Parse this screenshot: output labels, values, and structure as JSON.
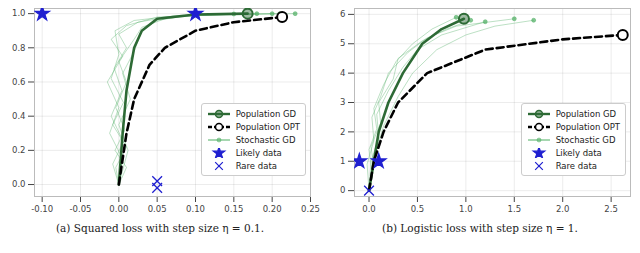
{
  "chart_data": [
    {
      "type": "line",
      "title": "(a) Squared loss with step size η = 0.1.",
      "grid": true,
      "legend": "lower right",
      "xlim": [
        -0.11,
        0.25
      ],
      "ylim": [
        -0.07,
        1.03
      ],
      "xticks": [
        {
          "value": -0.1,
          "label": "-0.10"
        },
        {
          "value": -0.05,
          "label": "-0.05"
        },
        {
          "value": 0,
          "label": "0.00"
        },
        {
          "value": 0.05,
          "label": "0.05"
        },
        {
          "value": 0.1,
          "label": "0.10"
        },
        {
          "value": 0.15,
          "label": "0.15"
        },
        {
          "value": 0.2,
          "label": "0.20"
        },
        {
          "value": 0.25,
          "label": "0.25"
        }
      ],
      "yticks": [
        {
          "value": 0,
          "label": "0.0"
        },
        {
          "value": 0.2,
          "label": "0.2"
        },
        {
          "value": 0.4,
          "label": "0.4"
        },
        {
          "value": 0.6,
          "label": "0.6"
        },
        {
          "value": 0.8,
          "label": "0.8"
        },
        {
          "value": 1,
          "label": "1.0"
        }
      ],
      "series": [
        {
          "name": "Population GD",
          "type": "line",
          "color": "#2d6a35",
          "line_style": "solid",
          "marker": "circle",
          "x": [
            0,
            0.005,
            0.01,
            0.02,
            0.03,
            0.05,
            0.1,
            0.168
          ],
          "values": [
            0,
            0.3,
            0.55,
            0.8,
            0.9,
            0.97,
            0.995,
            1.0
          ]
        },
        {
          "name": "Population OPT",
          "type": "line",
          "color": "#000000",
          "line_style": "dashed",
          "marker": "circle",
          "x": [
            0,
            0.01,
            0.02,
            0.04,
            0.06,
            0.1,
            0.15,
            0.213
          ],
          "values": [
            0,
            0.3,
            0.5,
            0.7,
            0.8,
            0.9,
            0.95,
            0.98
          ]
        },
        {
          "name": "Stochastic GD",
          "type": "line",
          "color": "#4fae63",
          "line_style": "solid",
          "marker": "circle",
          "x": [
            0,
            0.01,
            -0.005,
            0.008,
            -0.004,
            0.01,
            0.0,
            0.02,
            0.03,
            0.06,
            0.1,
            0.18,
            null,
            0,
            -0.008,
            0.006,
            -0.01,
            0.004,
            -0.006,
            0.01,
            0.0,
            0.025,
            0.07,
            0.2,
            null,
            0,
            0.005,
            -0.012,
            0.0,
            -0.015,
            0.005,
            -0.01,
            0.01,
            0.05,
            0.14,
            0.23,
            null,
            0,
            0.012,
            0.0,
            0.015,
            0.005,
            0.02,
            0.03,
            0.05,
            0.09,
            0.15,
            null,
            0,
            -0.004,
            0.01,
            -0.008,
            0.006,
            -0.01,
            0.0,
            -0.005,
            0.02,
            0.08,
            0.21
          ],
          "values": [
            0,
            0.1,
            0.2,
            0.32,
            0.45,
            0.6,
            0.72,
            0.85,
            0.92,
            0.97,
            0.99,
            1.0,
            null,
            0,
            0.12,
            0.25,
            0.4,
            0.55,
            0.68,
            0.8,
            0.88,
            0.95,
            0.985,
            1.0,
            null,
            0,
            0.15,
            0.3,
            0.45,
            0.6,
            0.75,
            0.85,
            0.93,
            0.98,
            0.995,
            1.0,
            null,
            0,
            0.2,
            0.35,
            0.5,
            0.65,
            0.78,
            0.9,
            0.96,
            0.99,
            0.998,
            null,
            0,
            0.1,
            0.22,
            0.35,
            0.48,
            0.62,
            0.76,
            0.9,
            0.96,
            0.99,
            1.0
          ]
        },
        {
          "name": "Likely data",
          "type": "scatter",
          "color": "#1f1fd0",
          "marker": "star",
          "x": [
            -0.1,
            0.1
          ],
          "values": [
            1.0,
            1.0
          ]
        },
        {
          "name": "Rare data",
          "type": "scatter",
          "color": "#1f1fd0",
          "marker": "x",
          "x": [
            0.05,
            0.05
          ],
          "values": [
            0.02,
            -0.02
          ]
        }
      ]
    },
    {
      "type": "line",
      "title": "(b) Logistic loss with step size η = 1.",
      "grid": true,
      "legend": "lower right",
      "xlim": [
        -0.15,
        2.7
      ],
      "ylim": [
        -0.2,
        6.2
      ],
      "xticks": [
        {
          "value": 0,
          "label": "0.0"
        },
        {
          "value": 0.5,
          "label": "0.5"
        },
        {
          "value": 1,
          "label": "1.0"
        },
        {
          "value": 1.5,
          "label": "1.5"
        },
        {
          "value": 2,
          "label": "2.0"
        },
        {
          "value": 2.5,
          "label": "2.5"
        }
      ],
      "yticks": [
        0,
        1,
        2,
        3,
        4,
        5,
        6
      ],
      "series": [
        {
          "name": "Population GD",
          "type": "line",
          "color": "#2d6a35",
          "line_style": "solid",
          "marker": "circle",
          "x": [
            0,
            0.05,
            0.1,
            0.2,
            0.35,
            0.55,
            0.75,
            0.98
          ],
          "values": [
            0,
            1,
            2,
            3,
            4,
            5,
            5.5,
            5.85
          ]
        },
        {
          "name": "Population OPT",
          "type": "line",
          "color": "#000000",
          "line_style": "dashed",
          "marker": "circle",
          "x": [
            0,
            0.05,
            0.15,
            0.3,
            0.6,
            1.2,
            2.0,
            2.62
          ],
          "values": [
            0,
            1,
            2,
            3,
            4,
            4.8,
            5.15,
            5.3
          ]
        },
        {
          "name": "Stochastic GD",
          "type": "line",
          "color": "#4fae63",
          "line_style": "solid",
          "marker": "circle",
          "x": [
            0,
            0.05,
            0.02,
            0.12,
            0.1,
            0.25,
            0.3,
            0.55,
            0.8,
            1.05,
            null,
            0,
            0.02,
            0.1,
            0.08,
            0.2,
            0.35,
            0.5,
            0.75,
            1.2,
            null,
            0,
            -0.02,
            0.05,
            0.03,
            0.12,
            0.2,
            0.4,
            0.6,
            0.9,
            1.5,
            null,
            0,
            0.06,
            0.15,
            0.3,
            0.45,
            0.7,
            1.0,
            1.3,
            1.7,
            null,
            0,
            0.03,
            0.0,
            0.08,
            0.05,
            0.15,
            0.28,
            0.45,
            0.65,
            0.9
          ],
          "values": [
            0,
            0.8,
            1.5,
            2.3,
            3.0,
            3.8,
            4.5,
            5.1,
            5.5,
            5.8,
            null,
            0,
            1.0,
            1.8,
            2.6,
            3.4,
            4.2,
            4.8,
            5.3,
            5.75,
            null,
            0,
            0.9,
            1.7,
            2.5,
            3.2,
            4.0,
            4.7,
            5.2,
            5.6,
            5.85,
            null,
            0,
            1.2,
            2.2,
            3.2,
            4.0,
            4.8,
            5.3,
            5.6,
            5.8,
            null,
            0,
            0.7,
            1.4,
            2.1,
            2.8,
            3.6,
            4.4,
            5.0,
            5.5,
            5.9
          ]
        },
        {
          "name": "Likely data",
          "type": "scatter",
          "color": "#1f1fd0",
          "marker": "star",
          "x": [
            -0.1,
            0.1
          ],
          "values": [
            1.0,
            1.0
          ]
        },
        {
          "name": "Rare data",
          "type": "scatter",
          "color": "#1f1fd0",
          "marker": "x",
          "x": [
            0.0
          ],
          "values": [
            0.0
          ]
        }
      ]
    }
  ]
}
